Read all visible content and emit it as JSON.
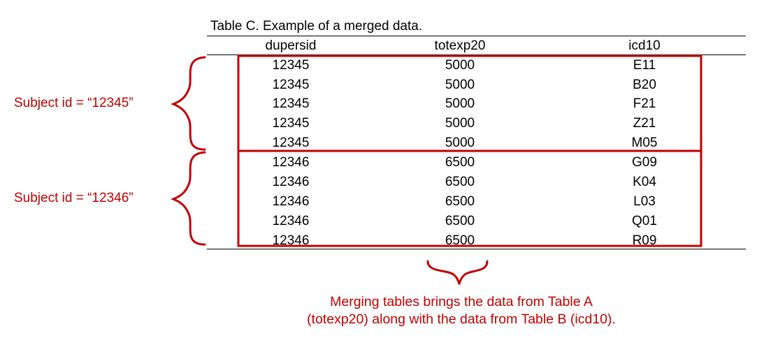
{
  "table": {
    "caption": "Table C. Example of a merged data.",
    "columns": [
      "dupersid",
      "totexp20",
      "icd10"
    ],
    "rows": [
      [
        "12345",
        "5000",
        "E11"
      ],
      [
        "12345",
        "5000",
        "B20"
      ],
      [
        "12345",
        "5000",
        "F21"
      ],
      [
        "12345",
        "5000",
        "Z21"
      ],
      [
        "12345",
        "5000",
        "M05"
      ],
      [
        "12346",
        "6500",
        "G09"
      ],
      [
        "12346",
        "6500",
        "K04"
      ],
      [
        "12346",
        "6500",
        "L03"
      ],
      [
        "12346",
        "6500",
        "Q01"
      ],
      [
        "12346",
        "6500",
        "R09"
      ]
    ]
  },
  "annotations": {
    "group1_label": "Subject id = “12345”",
    "group2_label": "Subject id = “12346”",
    "note_line1": "Merging tables brings the data from Table A",
    "note_line2": "(totexp20) along with the data from Table B (icd10).",
    "accent_color": "#c00000"
  }
}
